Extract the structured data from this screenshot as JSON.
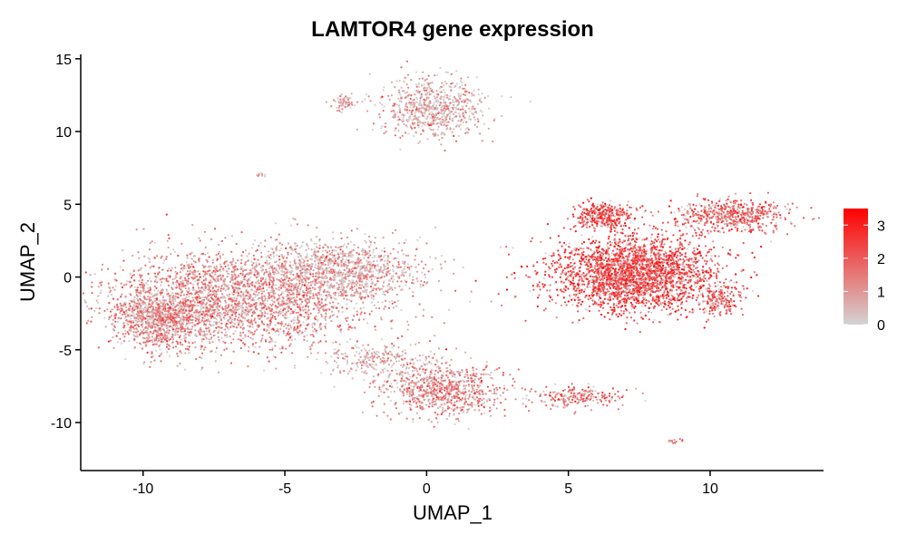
{
  "chart_data": {
    "type": "scatter",
    "title": "LAMTOR4 gene expression",
    "xlabel": "UMAP_1",
    "ylabel": "UMAP_2",
    "xlim": [
      -12.2,
      14.0
    ],
    "ylim": [
      -13.3,
      15.3
    ],
    "xticks": [
      -10,
      -5,
      0,
      5,
      10
    ],
    "yticks": [
      -10,
      -5,
      0,
      5,
      10,
      15
    ],
    "grid": false,
    "legend": {
      "placement": "right",
      "type": "colorbar",
      "ticks": [
        0,
        1,
        2,
        3
      ],
      "range": [
        0,
        3.5
      ],
      "low_color": "#d3d3d3",
      "high_color": "#ff0000"
    },
    "clusters": [
      {
        "cx": -6.5,
        "cy": -1.5,
        "sx": 2.3,
        "sy": 1.6,
        "n": 2600,
        "mean_expr": 1.2
      },
      {
        "cx": -9.3,
        "cy": -2.8,
        "sx": 0.9,
        "sy": 1.1,
        "n": 900,
        "mean_expr": 1.3
      },
      {
        "cx": -3.0,
        "cy": 0.6,
        "sx": 1.4,
        "sy": 1.0,
        "n": 1000,
        "mean_expr": 0.8
      },
      {
        "cx": 0.2,
        "cy": 11.6,
        "sx": 0.9,
        "sy": 1.0,
        "n": 700,
        "mean_expr": 0.7
      },
      {
        "cx": -2.9,
        "cy": 12.0,
        "sx": 0.25,
        "sy": 0.25,
        "n": 60,
        "mean_expr": 0.9
      },
      {
        "cx": 7.3,
        "cy": 0.2,
        "sx": 1.5,
        "sy": 1.3,
        "n": 2600,
        "mean_expr": 2.3
      },
      {
        "cx": 6.3,
        "cy": 4.2,
        "sx": 0.5,
        "sy": 0.4,
        "n": 350,
        "mean_expr": 2.2
      },
      {
        "cx": 10.8,
        "cy": 4.2,
        "sx": 1.0,
        "sy": 0.6,
        "n": 550,
        "mean_expr": 1.9
      },
      {
        "cx": 10.3,
        "cy": -1.5,
        "sx": 0.35,
        "sy": 0.5,
        "n": 150,
        "mean_expr": 2.0
      },
      {
        "cx": 0.6,
        "cy": -7.8,
        "sx": 1.1,
        "sy": 0.9,
        "n": 800,
        "mean_expr": 1.3
      },
      {
        "cx": -1.8,
        "cy": -5.7,
        "sx": 1.0,
        "sy": 0.6,
        "n": 250,
        "mean_expr": 0.6
      },
      {
        "cx": 5.3,
        "cy": -8.2,
        "sx": 0.8,
        "sy": 0.4,
        "n": 200,
        "mean_expr": 1.6
      },
      {
        "cx": -5.9,
        "cy": 7.0,
        "sx": 0.1,
        "sy": 0.1,
        "n": 12,
        "mean_expr": 0.5
      },
      {
        "cx": 8.7,
        "cy": -11.3,
        "sx": 0.12,
        "sy": 0.08,
        "n": 14,
        "mean_expr": 1.5
      }
    ]
  }
}
